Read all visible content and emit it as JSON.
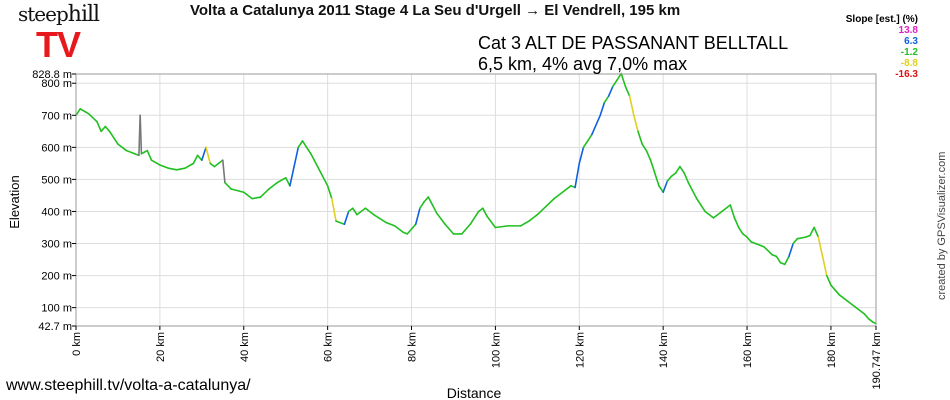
{
  "logo": {
    "top": "steephill",
    "bottom": "TV",
    "brand_red": "#e8191c"
  },
  "header": {
    "title": "Volta a Catalunya 2011 Stage 4  La Seu d'Urgell → El Vendrell, 195 km",
    "climb_name": "Cat 3 ALT DE PASSANANT BELLTALL",
    "climb_stats": "6,5 km, 4% avg 7,0% max"
  },
  "slope_legend": {
    "title": "Slope [est.] (%)",
    "entries": [
      {
        "label": "13.8",
        "color": "#e020c8"
      },
      {
        "label": "6.3",
        "color": "#1060e0"
      },
      {
        "label": "-1.2",
        "color": "#20c020"
      },
      {
        "label": "-8.8",
        "color": "#e0d020"
      },
      {
        "label": "-16.3",
        "color": "#e01010"
      }
    ]
  },
  "footer": {
    "url": "www.steephill.tv/volta-a-catalunya/",
    "credit": "created by GPSVisualizer.com"
  },
  "chart_data": {
    "type": "line",
    "xlabel": "Distance",
    "ylabel": "Elevation",
    "xlim": [
      0,
      190.747
    ],
    "ylim": [
      42.7,
      828.8
    ],
    "x_ticks": [
      {
        "value": 0,
        "label": "0 km"
      },
      {
        "value": 20,
        "label": "20 km"
      },
      {
        "value": 40,
        "label": "40 km"
      },
      {
        "value": 60,
        "label": "60 km"
      },
      {
        "value": 80,
        "label": "80 km"
      },
      {
        "value": 100,
        "label": "100 km"
      },
      {
        "value": 120,
        "label": "120 km"
      },
      {
        "value": 140,
        "label": "140 km"
      },
      {
        "value": 160,
        "label": "160 km"
      },
      {
        "value": 180,
        "label": "180 km"
      },
      {
        "value": 190.747,
        "label": "190.747 km"
      }
    ],
    "y_ticks": [
      {
        "value": 42.7,
        "label": "42.7 m"
      },
      {
        "value": 100,
        "label": "100 m"
      },
      {
        "value": 200,
        "label": "200 m"
      },
      {
        "value": 300,
        "label": "300 m"
      },
      {
        "value": 400,
        "label": "400 m"
      },
      {
        "value": 500,
        "label": "500 m"
      },
      {
        "value": 600,
        "label": "600 m"
      },
      {
        "value": 700,
        "label": "700 m"
      },
      {
        "value": 800,
        "label": "800 m"
      },
      {
        "value": 828.8,
        "label": "828.8 m"
      }
    ],
    "grid": true,
    "series": [
      {
        "points": [
          [
            0,
            700
          ],
          [
            1,
            720
          ],
          [
            3,
            705
          ],
          [
            5,
            680
          ],
          [
            6,
            650
          ],
          [
            7,
            665
          ],
          [
            8,
            650
          ],
          [
            10,
            610
          ],
          [
            12,
            590
          ],
          [
            14,
            580
          ],
          [
            15,
            575
          ],
          [
            15.3,
            700
          ],
          [
            15.6,
            580
          ],
          [
            17,
            590
          ],
          [
            18,
            560
          ],
          [
            20,
            545
          ],
          [
            22,
            535
          ],
          [
            24,
            530
          ],
          [
            26,
            535
          ],
          [
            28,
            550
          ],
          [
            29,
            575
          ],
          [
            30,
            560
          ],
          [
            31,
            600
          ],
          [
            32,
            550
          ],
          [
            33,
            540
          ],
          [
            35,
            560
          ],
          [
            35.5,
            490
          ],
          [
            37,
            470
          ],
          [
            40,
            460
          ],
          [
            42,
            440
          ],
          [
            44,
            445
          ],
          [
            46,
            470
          ],
          [
            48,
            490
          ],
          [
            50,
            505
          ],
          [
            51,
            480
          ],
          [
            52,
            540
          ],
          [
            53,
            600
          ],
          [
            54,
            620
          ],
          [
            56,
            580
          ],
          [
            58,
            530
          ],
          [
            60,
            480
          ],
          [
            61,
            440
          ],
          [
            62,
            370
          ],
          [
            64,
            360
          ],
          [
            65,
            400
          ],
          [
            66,
            410
          ],
          [
            67,
            390
          ],
          [
            69,
            410
          ],
          [
            71,
            390
          ],
          [
            74,
            365
          ],
          [
            76,
            355
          ],
          [
            78,
            335
          ],
          [
            79,
            330
          ],
          [
            81,
            360
          ],
          [
            82,
            410
          ],
          [
            83,
            430
          ],
          [
            84,
            445
          ],
          [
            85,
            420
          ],
          [
            86,
            395
          ],
          [
            88,
            360
          ],
          [
            90,
            330
          ],
          [
            92,
            330
          ],
          [
            94,
            360
          ],
          [
            96,
            400
          ],
          [
            97,
            410
          ],
          [
            98,
            385
          ],
          [
            100,
            350
          ],
          [
            103,
            355
          ],
          [
            106,
            355
          ],
          [
            108,
            370
          ],
          [
            110,
            390
          ],
          [
            112,
            415
          ],
          [
            114,
            440
          ],
          [
            116,
            460
          ],
          [
            118,
            480
          ],
          [
            119,
            475
          ],
          [
            120,
            550
          ],
          [
            121,
            600
          ],
          [
            123,
            640
          ],
          [
            125,
            700
          ],
          [
            126,
            740
          ],
          [
            127,
            760
          ],
          [
            128,
            790
          ],
          [
            129,
            810
          ],
          [
            130,
            830
          ],
          [
            131,
            790
          ],
          [
            132,
            760
          ],
          [
            133,
            700
          ],
          [
            134,
            650
          ],
          [
            135,
            610
          ],
          [
            136,
            590
          ],
          [
            137,
            560
          ],
          [
            138,
            520
          ],
          [
            139,
            480
          ],
          [
            140,
            460
          ],
          [
            141,
            495
          ],
          [
            142,
            510
          ],
          [
            143,
            520
          ],
          [
            144,
            540
          ],
          [
            145,
            520
          ],
          [
            146,
            490
          ],
          [
            148,
            440
          ],
          [
            149,
            420
          ],
          [
            150,
            400
          ],
          [
            152,
            380
          ],
          [
            154,
            400
          ],
          [
            156,
            420
          ],
          [
            157,
            380
          ],
          [
            158,
            350
          ],
          [
            159,
            330
          ],
          [
            160,
            320
          ],
          [
            161,
            305
          ],
          [
            162,
            300
          ],
          [
            164,
            290
          ],
          [
            166,
            265
          ],
          [
            167,
            260
          ],
          [
            168,
            240
          ],
          [
            169,
            235
          ],
          [
            170,
            260
          ],
          [
            171,
            300
          ],
          [
            172,
            315
          ],
          [
            174,
            320
          ],
          [
            175,
            325
          ],
          [
            176,
            350
          ],
          [
            177,
            320
          ],
          [
            178,
            260
          ],
          [
            179,
            200
          ],
          [
            180,
            170
          ],
          [
            182,
            140
          ],
          [
            184,
            120
          ],
          [
            186,
            100
          ],
          [
            188,
            80
          ],
          [
            189,
            65
          ],
          [
            190,
            55
          ],
          [
            190.747,
            50
          ]
        ]
      }
    ]
  }
}
